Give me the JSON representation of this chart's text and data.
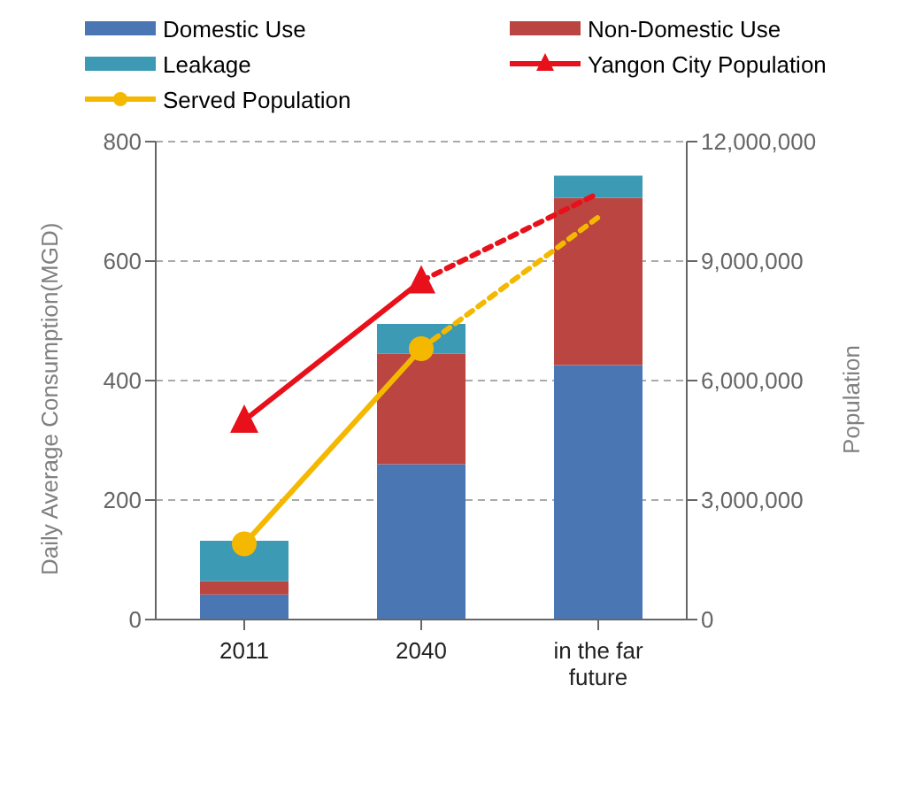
{
  "chart_data": {
    "type": "bar",
    "stacked": true,
    "categories": [
      "2011",
      "2040",
      "in the far future"
    ],
    "series": [
      {
        "name": "Domestic Use",
        "color": "#4a76b4",
        "values": [
          42,
          260,
          426
        ]
      },
      {
        "name": "Non-Domestic Use",
        "color": "#bb4540",
        "values": [
          22,
          185,
          280
        ]
      },
      {
        "name": "Leakage",
        "color": "#3d9ab4",
        "values": [
          68,
          50,
          37
        ]
      },
      {
        "name": "Yangon City Population",
        "type": "line",
        "axis": "y2",
        "color": "#e8101a",
        "marker": "triangle",
        "line_style": "solid",
        "values": [
          5000000,
          8500000,
          null
        ]
      },
      {
        "type": "line",
        "axis": "y2",
        "color": "#e8101a",
        "marker": "none",
        "line_style": "dotted",
        "values": [
          null,
          8500000,
          10700000
        ]
      },
      {
        "name": "Served Population",
        "type": "line",
        "axis": "y2",
        "color": "#f5b800",
        "marker": "circle",
        "line_style": "solid",
        "values": [
          1900000,
          6800000,
          null
        ]
      },
      {
        "type": "line",
        "axis": "y2",
        "color": "#f5b800",
        "marker": "none",
        "line_style": "dotted",
        "values": [
          null,
          6800000,
          10100000
        ]
      }
    ],
    "ylabel": "Daily Average Consumption(MGD)",
    "y2label": "Population",
    "ylim": [
      0,
      800
    ],
    "yticks": [
      0,
      200,
      400,
      600,
      800
    ],
    "y2lim": [
      0,
      12000000
    ],
    "y2ticks": [
      0,
      {
        "value": 3000000,
        "label": "3,000,000"
      },
      {
        "value": 6000000,
        "label": "6,000,000"
      },
      {
        "value": 9000000,
        "label": "9,000,000"
      },
      {
        "value": 12000000,
        "label": "12,000,000"
      }
    ],
    "grid": "y",
    "legend": "top"
  }
}
